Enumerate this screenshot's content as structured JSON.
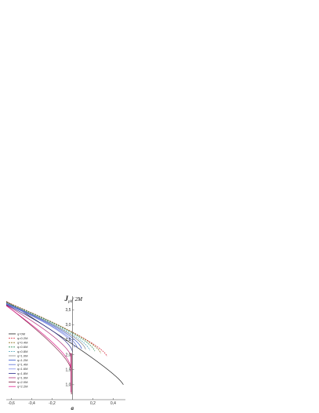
{
  "chart_data": {
    "type": "line",
    "title": "",
    "xlabel": "a",
    "ylabel": "J_ph/ 2M",
    "ylabel_main": "J",
    "ylabel_sub": "ph",
    "ylabel_rest": "/ 2M",
    "xlim": [
      -0.65,
      0.52
    ],
    "ylim": [
      0.5,
      3.9
    ],
    "x_ticks": [
      -0.6,
      -0.4,
      -0.2,
      0.2,
      0.4
    ],
    "x_tick_labels": [
      "-0,6",
      "-0,4",
      "-0,2",
      "0,2",
      "0,4"
    ],
    "y_ticks": [
      1.0,
      1.5,
      2.0,
      2.5,
      3.0,
      3.5
    ],
    "y_tick_labels": [
      "1,0",
      "1,5",
      "2,0",
      "2,5",
      "3,0",
      "3,5"
    ],
    "grid": false,
    "legend_placement": "lower-left",
    "series": [
      {
        "name": "q=0M",
        "color": "#222222",
        "dash": "solid",
        "x_end": 0.5,
        "y_end": 1.0
      },
      {
        "name": "q=0.2M",
        "color": "#d6273b",
        "dash": "dashed",
        "x_end": 0.34,
        "y_end": 1.95
      },
      {
        "name": "q=0.4M",
        "color": "#8a6d1a",
        "dash": "dashed",
        "x_end": 0.28,
        "y_end": 2.05
      },
      {
        "name": "q=0.6M",
        "color": "#2e8b57",
        "dash": "dashed",
        "x_end": 0.22,
        "y_end": 2.12
      },
      {
        "name": "q=0.8M",
        "color": "#4aa3b8",
        "dash": "dashed",
        "x_end": 0.17,
        "y_end": 2.15
      },
      {
        "name": "q=1.0M",
        "color": "#8a8a8a",
        "dash": "solid",
        "x_end": 0.13,
        "y_end": 2.18
      },
      {
        "name": "q=1.2M",
        "color": "#3355cc",
        "dash": "solid",
        "x_end": 0.09,
        "y_end": 2.2
      },
      {
        "name": "q=1.4M",
        "color": "#5a6fd6",
        "dash": "solid",
        "x_end": 0.05,
        "y_end": 2.22
      },
      {
        "name": "q=1.6M",
        "color": "#7f8ee6",
        "dash": "solid",
        "x_end": 0.02,
        "y_end": 2.24
      },
      {
        "name": "q=1.8M",
        "color": "#2a2a8a",
        "dash": "solid",
        "x_end": 0.0,
        "y_end": 2.1
      },
      {
        "name": "q=1.9M",
        "color": "#b0307a",
        "dash": "solid",
        "x_end": -0.01,
        "y_end": 1.9
      },
      {
        "name": "q=2.0M",
        "color": "#7a1a3a",
        "dash": "solid",
        "x_end": -0.015,
        "y_end": 1.5
      },
      {
        "name": "q=2.2M",
        "color": "#e0208c",
        "dash": "solid",
        "x_end": -0.02,
        "y_end": 1.6
      }
    ]
  }
}
